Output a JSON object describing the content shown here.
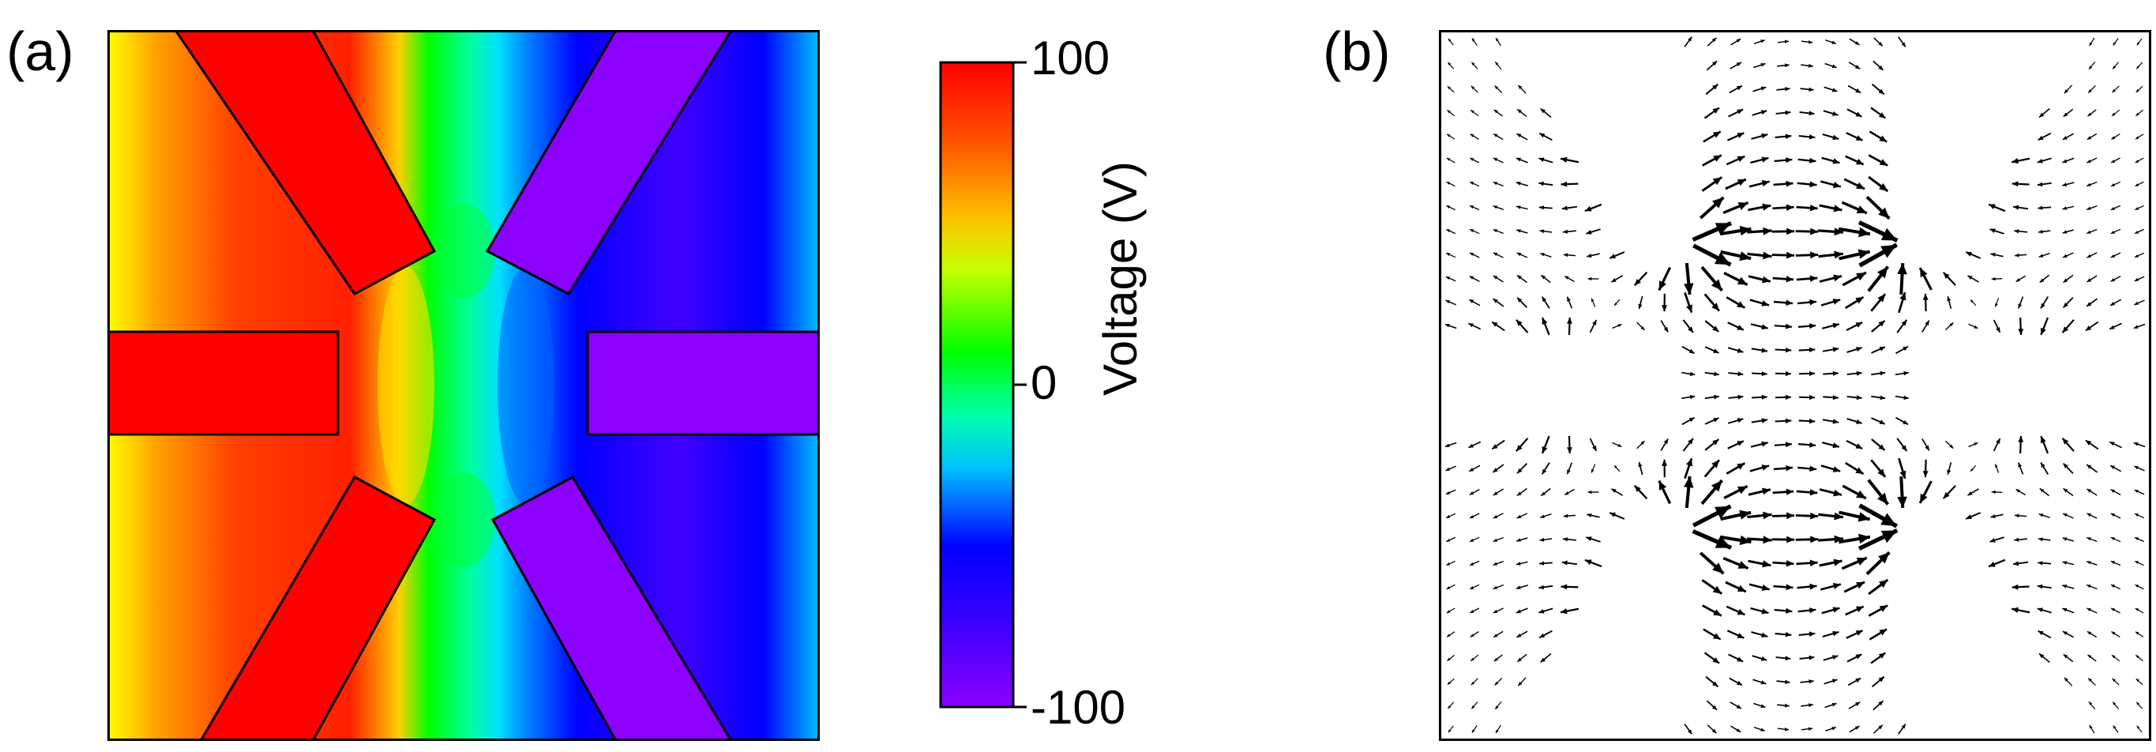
{
  "panel_labels": {
    "a": "(a)",
    "b": "(b)"
  },
  "colors": {
    "red_electrode": "#ff0000",
    "violet_electrode": "#8b00ff",
    "frame": "#000000",
    "arrow": "#000000"
  },
  "chart_data": [
    {
      "type": "heatmap",
      "title": "",
      "description_label": "(a)",
      "colorbar": {
        "label": "Voltage (V)",
        "min": -100,
        "max": 100,
        "ticks": [
          "100",
          "0",
          "-100"
        ],
        "colormap": [
          "#8b00ff",
          "#0000ff",
          "#00ffff",
          "#00ff00",
          "#ffff00",
          "#ff8000",
          "#ff0000"
        ]
      },
      "xlim": [
        -1,
        1
      ],
      "ylim": [
        -1,
        1
      ],
      "electrodes": [
        {
          "name": "left-middle",
          "voltage": 100
        },
        {
          "name": "left-upper",
          "voltage": 100
        },
        {
          "name": "left-lower",
          "voltage": 100
        },
        {
          "name": "right-middle",
          "voltage": -100
        },
        {
          "name": "right-upper",
          "voltage": -100
        },
        {
          "name": "right-lower",
          "voltage": -100
        }
      ]
    },
    {
      "type": "quiver",
      "description_label": "(b)",
      "quantity": "electric field",
      "xlim": [
        -1,
        1
      ],
      "ylim": [
        -1,
        1
      ],
      "grid": "30x30",
      "max_field_regions": [
        "center-upper gap",
        "center-lower gap"
      ]
    }
  ]
}
